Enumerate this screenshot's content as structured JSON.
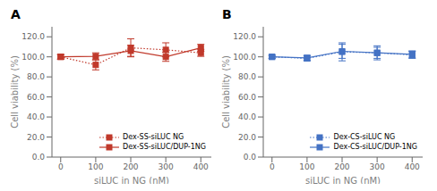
{
  "chart_data": [
    {
      "type": "line",
      "title": "A",
      "x": [
        0,
        100,
        200,
        300,
        400
      ],
      "xlim": [
        -25,
        430
      ],
      "xticks": [
        0,
        100,
        200,
        300,
        400
      ],
      "ylim": [
        0.0,
        130.0
      ],
      "yticks": [
        {
          "value": 0.0,
          "label": "0.0"
        },
        {
          "value": 20.0,
          "label": "20.0"
        },
        {
          "value": 40.0,
          "label": "40.0"
        },
        {
          "value": 60.0,
          "label": "60.0"
        },
        {
          "value": 80.0,
          "label": "80.0"
        },
        {
          "value": 100.0,
          "label": "100.0"
        },
        {
          "value": 120.0,
          "label": "120.0"
        }
      ],
      "xlabel": "siLUC in NG (nM)",
      "ylabel": "Cell viability (%)",
      "legend": "lower right",
      "series": [
        {
          "name": "Dex-SS-siLUC NG",
          "color": "#c0392b",
          "line_style": "dotted",
          "marker": "square",
          "values": [
            100.0,
            92.0,
            109.0,
            107.0,
            104.0
          ],
          "errors": [
            2.5,
            5.0,
            9.0,
            7.0,
            3.5
          ]
        },
        {
          "name": "Dex-SS-siLUC/DUP-1NG",
          "color": "#c0392b",
          "line_style": "solid",
          "marker": "square",
          "values": [
            100.0,
            100.5,
            106.0,
            100.0,
            109.0
          ],
          "errors": [
            2.0,
            3.5,
            5.5,
            4.5,
            3.5
          ]
        }
      ]
    },
    {
      "type": "line",
      "title": "B",
      "x": [
        0,
        100,
        200,
        300,
        400
      ],
      "xlim": [
        -25,
        430
      ],
      "xticks": [
        0,
        100,
        200,
        300,
        400
      ],
      "ylim": [
        0.0,
        130.0
      ],
      "yticks": [
        {
          "value": 0.0,
          "label": "0.0"
        },
        {
          "value": 20.0,
          "label": "20.0"
        },
        {
          "value": 40.0,
          "label": "40.0"
        },
        {
          "value": 60.0,
          "label": "60.0"
        },
        {
          "value": 80.0,
          "label": "80.0"
        },
        {
          "value": 100.0,
          "label": "100.0"
        },
        {
          "value": 120.0,
          "label": "120.0"
        }
      ],
      "xlabel": "siLUC in NG (nM)",
      "ylabel": "Cell viability (%)",
      "legend": "lower right",
      "series": [
        {
          "name": "Dex-CS-siLUC NG",
          "color": "#4472c4",
          "line_style": "dotted",
          "marker": "square",
          "values": [
            100.0,
            98.5,
            105.0,
            104.0,
            102.0
          ],
          "errors": [
            1.5,
            2.5,
            9.0,
            7.0,
            3.5
          ]
        },
        {
          "name": "Dex-CS-siLUC/DUP-1NG",
          "color": "#4472c4",
          "line_style": "solid",
          "marker": "square",
          "values": [
            100.0,
            99.0,
            105.5,
            104.0,
            102.5
          ],
          "errors": [
            1.5,
            2.5,
            7.0,
            5.5,
            3.5
          ]
        }
      ]
    }
  ]
}
